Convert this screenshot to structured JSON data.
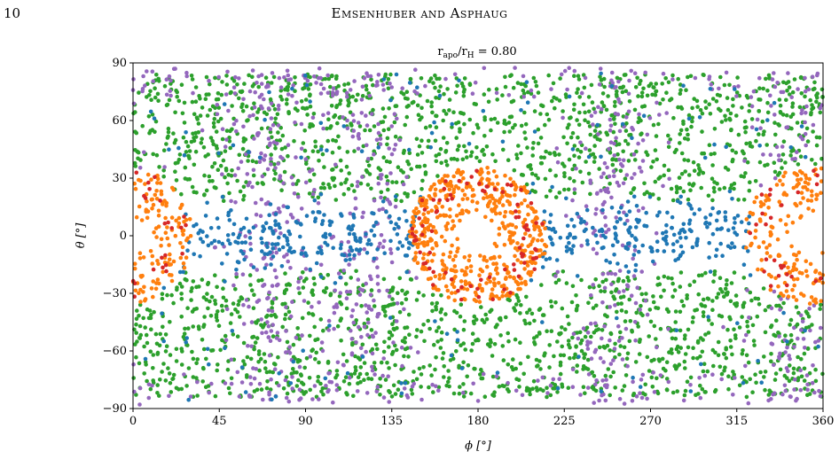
{
  "page": {
    "number": "10",
    "running_header": "Emsenhuber and Asphaug"
  },
  "colors": {
    "blue": "#1f77b4",
    "orange": "#ff7f0e",
    "green": "#2ca02c",
    "red": "#d62728",
    "purple": "#9467bd"
  },
  "chart_data": {
    "type": "scatter",
    "title_main": "r",
    "title_sub1": "apo",
    "title_sep": "/r",
    "title_sub2": "H",
    "title_rest": " = 0.80",
    "xlabel": "ϕ [°]",
    "ylabel": "θ [°]",
    "xlim": [
      0,
      360
    ],
    "ylim": [
      -90,
      90
    ],
    "xticks": [
      0,
      45,
      90,
      135,
      180,
      225,
      270,
      315,
      360
    ],
    "yticks": [
      -90,
      -60,
      -30,
      0,
      30,
      60,
      90
    ],
    "ytick_labels": [
      "−90",
      "−60",
      "−30",
      "0",
      "30",
      "60",
      "90"
    ],
    "grid": false,
    "legend": "none",
    "series": [
      {
        "color_key": "green",
        "description": "background field, θ between about ±20° and ±85°"
      },
      {
        "color_key": "purple",
        "description": "bands near ϕ≈70°, 120°, 250°, 350° and high latitudes"
      },
      {
        "color_key": "blue",
        "description": "equatorial belt, |θ| < 25°"
      },
      {
        "color_key": "orange",
        "description": "annulus centred at (ϕ≈180°, θ≈0°) radius ≈35°, and ring wrapping ϕ=0°/360°"
      },
      {
        "color_key": "red",
        "description": "outer rim of the orange rings"
      }
    ]
  }
}
